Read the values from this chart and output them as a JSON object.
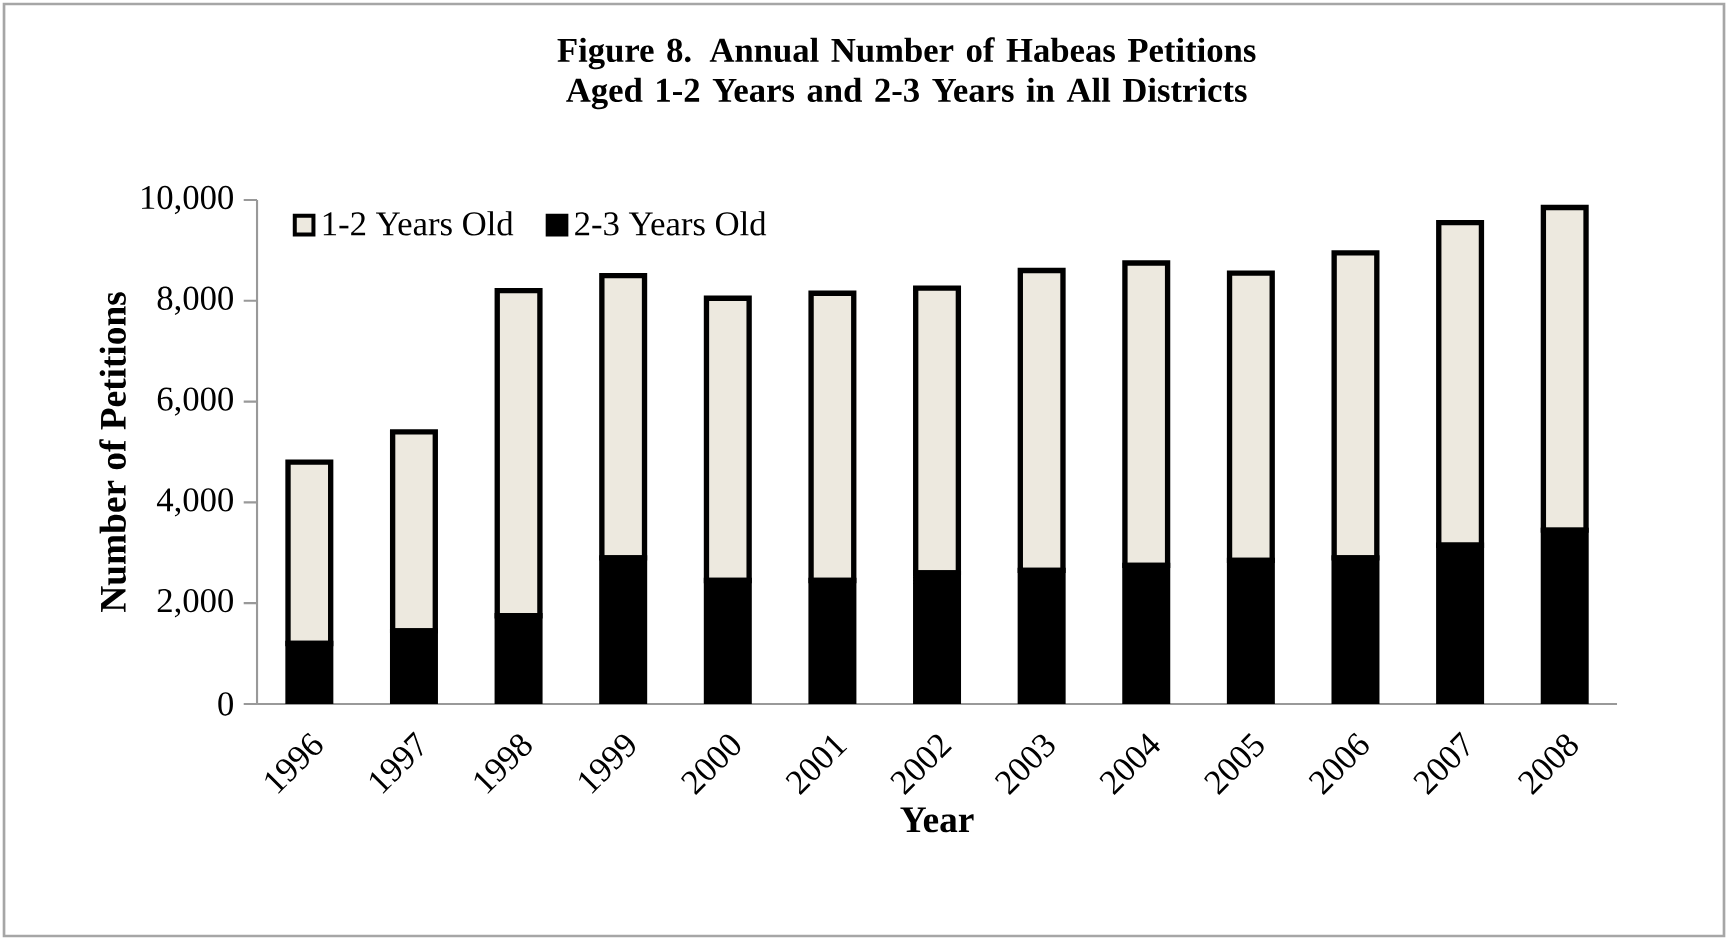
{
  "chart_data": {
    "type": "bar",
    "stacked": true,
    "title": "Figure 8.  Annual Number of Habeas Petitions Aged 1-2 Years and 2-3 Years in All Districts",
    "xlabel": "Year",
    "ylabel": "Number of Petitions",
    "categories": [
      "1996",
      "1997",
      "1998",
      "1999",
      "2000",
      "2001",
      "2002",
      "2003",
      "2004",
      "2005",
      "2006",
      "2007",
      "2008"
    ],
    "series": [
      {
        "name": "2-3 Years Old",
        "color": "#000000",
        "values": [
          1200,
          1450,
          1750,
          2900,
          2450,
          2450,
          2600,
          2650,
          2750,
          2850,
          2900,
          3150,
          3450
        ]
      },
      {
        "name": "1-2 Years Old",
        "color": "#ede9df",
        "values": [
          3600,
          3950,
          6450,
          5600,
          5600,
          5700,
          5650,
          5950,
          6000,
          5700,
          6050,
          6400,
          6400
        ]
      }
    ],
    "ylim": [
      0,
      10000
    ],
    "yticks": [
      0,
      {
        "value": 2000,
        "label": "2,000"
      },
      {
        "value": 4000,
        "label": "4,000"
      },
      {
        "value": 6000,
        "label": "6,000"
      },
      {
        "value": 8000,
        "label": "8,000"
      },
      {
        "value": 10000,
        "label": "10,000"
      }
    ],
    "grid": false,
    "legend": "top left"
  }
}
